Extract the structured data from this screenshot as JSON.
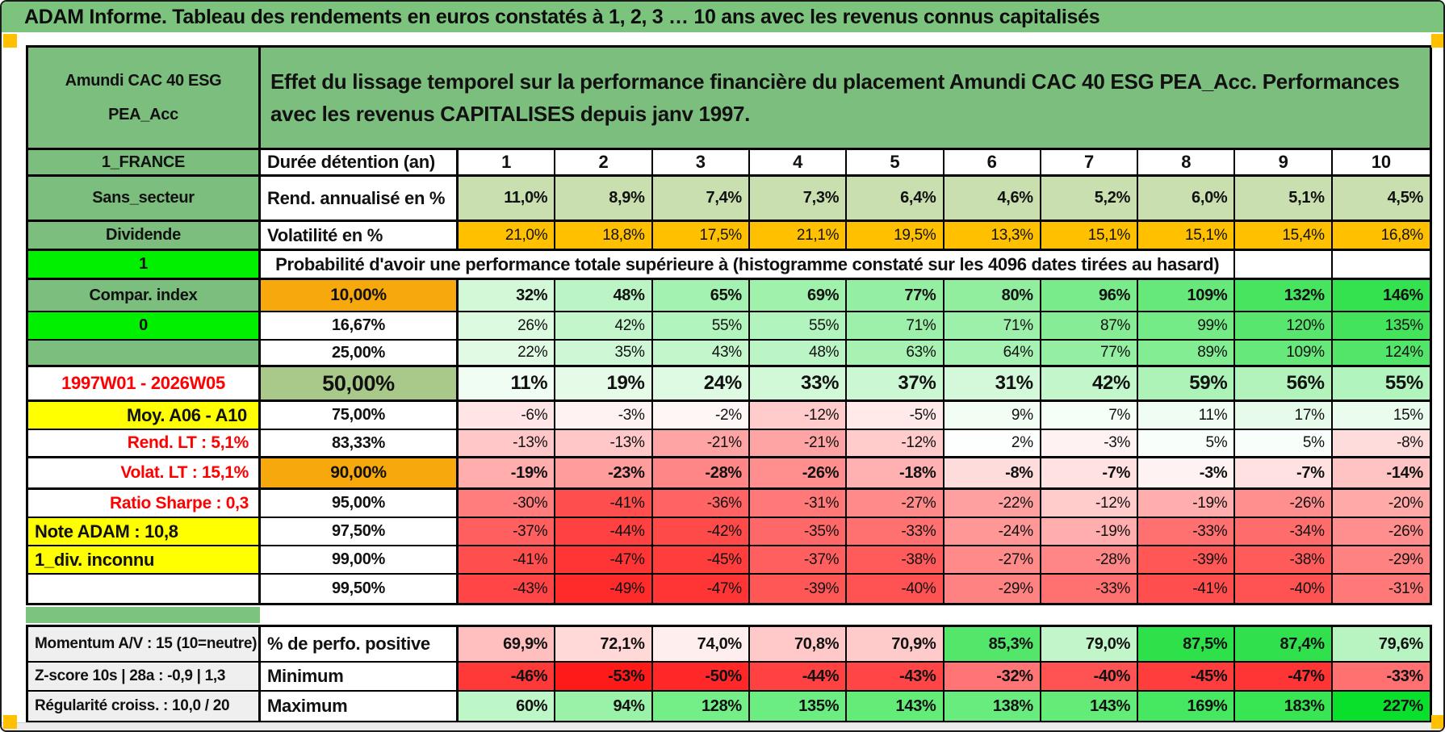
{
  "banner": {
    "title": "ADAM Informe. Tableau des rendements en euros constatés à 1, 2, 3 … 10 ans avec les revenus connus capitalisés"
  },
  "header": {
    "fund_name": "Amundi CAC 40 ESG PEA_Acc",
    "description": "Effet du lissage temporel sur la performance financière du placement Amundi CAC 40 ESG PEA_Acc. Performances avec les revenus CAPITALISES depuis janv 1997."
  },
  "colors": {
    "band_green": "#7CC47D",
    "cell_green": "#7CBE7D",
    "bright_green": "#00F000",
    "volatility_orange": "#FFC000",
    "percentile_orange": "#F7A80D",
    "sage_green": "#A9C98A",
    "rate_green": "#C9DFB0",
    "yellow": "#FFFF00",
    "gray_label": "#EFEFEF",
    "red_text": "#FF0000",
    "marker_orange": "#FFC000",
    "comment_red": "#E03131"
  },
  "chart_data": {
    "type": "table",
    "probability_note": "Probabilité d'avoir une performance totale supérieure à (histogramme constaté sur les 4096 dates tirées au hasard)",
    "rows": [
      {
        "left": {
          "text": "1_FRANCE",
          "variant": "green"
        },
        "label": {
          "text": "Durée détention (an)",
          "variant": "name"
        },
        "kind": "plain",
        "bold": true,
        "values": [
          "1",
          "2",
          "3",
          "4",
          "5",
          "6",
          "7",
          "8",
          "9",
          "10"
        ]
      },
      {
        "left": {
          "text": "Sans_secteur",
          "variant": "green"
        },
        "label": {
          "text": "Rend. annualisé en %",
          "variant": "name"
        },
        "kind": "rate",
        "bold": true,
        "values": [
          "11,0%",
          "8,9%",
          "7,4%",
          "7,3%",
          "6,4%",
          "4,6%",
          "5,2%",
          "6,0%",
          "5,1%",
          "4,5%"
        ]
      },
      {
        "left": {
          "text": "Dividende",
          "variant": "green"
        },
        "label": {
          "text": "Volatilité en %",
          "variant": "name"
        },
        "kind": "vol",
        "bold": false,
        "values": [
          "21,0%",
          "18,8%",
          "17,5%",
          "21,1%",
          "19,5%",
          "13,3%",
          "15,1%",
          "15,1%",
          "15,4%",
          "16,8%"
        ]
      },
      {
        "left": {
          "text": "1",
          "variant": "bright",
          "note": true
        },
        "span": true
      },
      {
        "left": {
          "text": "Compar. index",
          "variant": "green"
        },
        "label": {
          "text": "10,00%",
          "variant": "orange"
        },
        "kind": "prob",
        "bold": true,
        "values": [
          "32%",
          "48%",
          "65%",
          "69%",
          "77%",
          "80%",
          "96%",
          "109%",
          "132%",
          "146%"
        ]
      },
      {
        "left": {
          "text": "0",
          "variant": "bright",
          "note": true
        },
        "label": {
          "text": "16,67%",
          "variant": "pct"
        },
        "kind": "prob",
        "bold": false,
        "values": [
          "26%",
          "42%",
          "55%",
          "55%",
          "71%",
          "71%",
          "87%",
          "99%",
          "120%",
          "135%"
        ]
      },
      {
        "left": {
          "text": "",
          "variant": "green"
        },
        "label": {
          "text": "25,00%",
          "variant": "pct"
        },
        "kind": "prob",
        "bold": false,
        "values": [
          "22%",
          "35%",
          "43%",
          "48%",
          "63%",
          "64%",
          "77%",
          "89%",
          "109%",
          "124%"
        ]
      },
      {
        "left": {
          "text": "1997W01 - 2026W05",
          "variant": "red-center"
        },
        "label": {
          "text": "50,00%",
          "variant": "sage"
        },
        "kind": "prob",
        "bold": true,
        "big": true,
        "values": [
          "11%",
          "19%",
          "24%",
          "33%",
          "37%",
          "31%",
          "42%",
          "59%",
          "56%",
          "55%"
        ]
      },
      {
        "left": {
          "text": "Moy. A06 - A10",
          "variant": "yellow-right"
        },
        "label": {
          "text": "75,00%",
          "variant": "pct"
        },
        "kind": "prob",
        "bold": false,
        "values": [
          "-6%",
          "-3%",
          "-2%",
          "-12%",
          "-5%",
          "9%",
          "7%",
          "11%",
          "17%",
          "15%"
        ]
      },
      {
        "left": {
          "text": "Rend. LT :   5,1%",
          "variant": "red-right"
        },
        "label": {
          "text": "83,33%",
          "variant": "pct"
        },
        "kind": "prob",
        "bold": false,
        "values": [
          "-13%",
          "-13%",
          "-21%",
          "-21%",
          "-12%",
          "2%",
          "-3%",
          "5%",
          "5%",
          "-8%"
        ]
      },
      {
        "left": {
          "text": "Volat. LT :   15,1%",
          "variant": "red-right"
        },
        "label": {
          "text": "90,00%",
          "variant": "orange"
        },
        "kind": "prob",
        "bold": true,
        "values": [
          "-19%",
          "-23%",
          "-28%",
          "-26%",
          "-18%",
          "-8%",
          "-7%",
          "-3%",
          "-7%",
          "-14%"
        ]
      },
      {
        "left": {
          "text": "Ratio Sharpe :   0,3",
          "variant": "red-right"
        },
        "label": {
          "text": "95,00%",
          "variant": "pct"
        },
        "kind": "prob",
        "bold": false,
        "values": [
          "-30%",
          "-41%",
          "-36%",
          "-31%",
          "-27%",
          "-22%",
          "-12%",
          "-19%",
          "-26%",
          "-20%"
        ]
      },
      {
        "left": {
          "text": "Note ADAM : 10,8",
          "variant": "yellow-left"
        },
        "label": {
          "text": "97,50%",
          "variant": "pct"
        },
        "kind": "prob",
        "bold": false,
        "values": [
          "-37%",
          "-44%",
          "-42%",
          "-35%",
          "-33%",
          "-24%",
          "-19%",
          "-33%",
          "-34%",
          "-26%"
        ]
      },
      {
        "left": {
          "text": "1_div. inconnu",
          "variant": "yellow-left"
        },
        "label": {
          "text": "99,00%",
          "variant": "pct"
        },
        "kind": "prob",
        "bold": false,
        "values": [
          "-41%",
          "-47%",
          "-45%",
          "-37%",
          "-38%",
          "-27%",
          "-28%",
          "-39%",
          "-38%",
          "-29%"
        ]
      },
      {
        "left": {
          "text": "",
          "variant": "plain"
        },
        "label": {
          "text": "99,50%",
          "variant": "pct"
        },
        "kind": "prob",
        "bold": false,
        "values": [
          "-43%",
          "-49%",
          "-47%",
          "-39%",
          "-40%",
          "-29%",
          "-33%",
          "-41%",
          "-40%",
          "-31%"
        ]
      }
    ],
    "bottom_rows": [
      {
        "left": {
          "text": "Momentum A/V : 15 (10=neutre)",
          "variant": "gray"
        },
        "label": {
          "text": "% de perfo. positive",
          "variant": "name"
        },
        "kind": "perfo",
        "bold": true,
        "values": [
          "69,9%",
          "72,1%",
          "74,0%",
          "70,8%",
          "70,9%",
          "85,3%",
          "79,0%",
          "87,5%",
          "87,4%",
          "79,6%"
        ]
      },
      {
        "left": {
          "text": "Z-score 10s | 28a : -0,9 | 1,3",
          "variant": "gray"
        },
        "label": {
          "text": "Minimum",
          "variant": "name"
        },
        "kind": "min",
        "bold": true,
        "values": [
          "-46%",
          "-53%",
          "-50%",
          "-44%",
          "-43%",
          "-32%",
          "-40%",
          "-45%",
          "-47%",
          "-33%"
        ]
      },
      {
        "left": {
          "text": "Régularité croiss. : 10,0 / 20",
          "variant": "gray"
        },
        "label": {
          "text": "Maximum",
          "variant": "name"
        },
        "kind": "max",
        "bold": true,
        "values": [
          "60%",
          "94%",
          "128%",
          "135%",
          "143%",
          "138%",
          "143%",
          "169%",
          "183%",
          "227%"
        ]
      }
    ]
  }
}
